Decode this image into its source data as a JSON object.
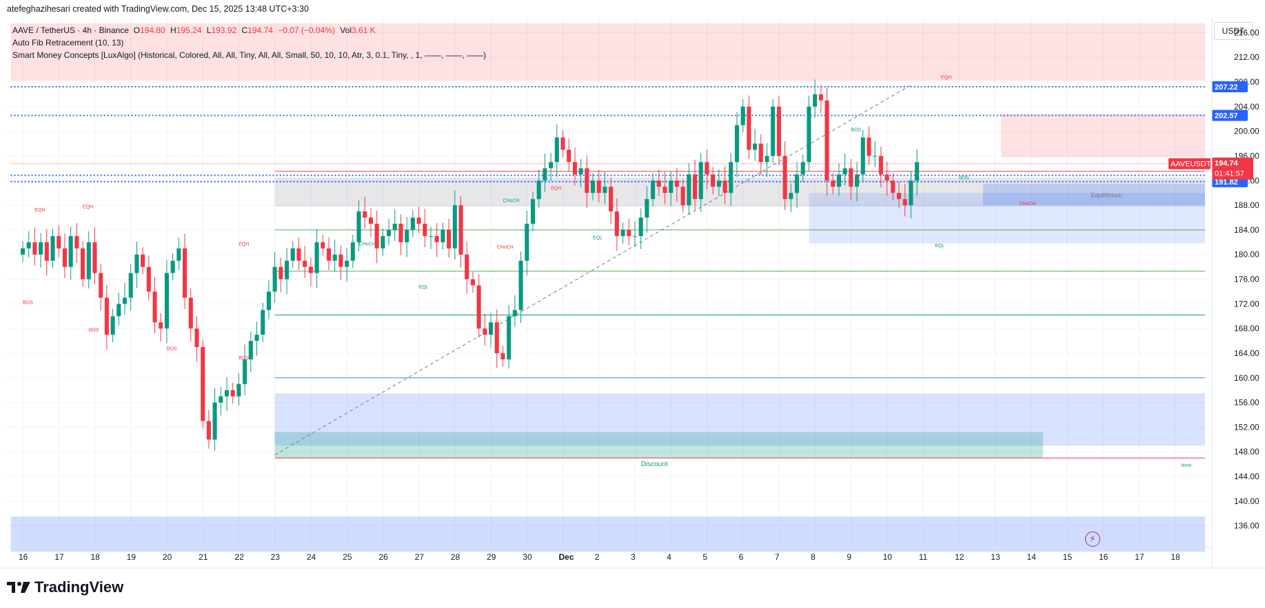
{
  "header": {
    "credit": "atefeghazihesari created with TradingView.com, Dec 15, 2025 13:48 UTC+3:30"
  },
  "legend": {
    "symbol": "AAVE / TetherUS · 4h · Binance",
    "open_label": "O",
    "open": "194.80",
    "high_label": "H",
    "high": "195.24",
    "low_label": "L",
    "low": "193.92",
    "close_label": "C",
    "close": "194.74",
    "change": "−0.07 (−0.04%)",
    "vol_label": "Vol",
    "vol": "3.61 K",
    "indicator1": "Auto Fib Retracement (10, 13)",
    "indicator2": "Smart Money Concepts [LuxAlgo] (Historical, Colored, All, All, Tiny, All, All, Small, 50, 10, 10, Atr, 3, 0.1, Tiny, , 1, ——, ——, ——)"
  },
  "currency": "USDT",
  "footer": {
    "brand": "TradingView"
  },
  "colors": {
    "up": "#089981",
    "down": "#f23645",
    "blue": "#2962ff",
    "grid": "#f0f3fa"
  },
  "chart_data": {
    "type": "candlestick",
    "symbol": "AAVEUSDT",
    "timeframe": "4h",
    "y_ticks": [
      136,
      140,
      144,
      148,
      152,
      156,
      160,
      164,
      168,
      172,
      176,
      180,
      184,
      188,
      192,
      196,
      200,
      204,
      208,
      212,
      216
    ],
    "ylim": [
      132.5,
      218.5
    ],
    "x_ticks": [
      {
        "label": "16",
        "i": 0
      },
      {
        "label": "17",
        "i": 6
      },
      {
        "label": "18",
        "i": 12
      },
      {
        "label": "19",
        "i": 18
      },
      {
        "label": "20",
        "i": 24
      },
      {
        "label": "21",
        "i": 30
      },
      {
        "label": "22",
        "i": 36
      },
      {
        "label": "23",
        "i": 42
      },
      {
        "label": "24",
        "i": 48
      },
      {
        "label": "25",
        "i": 54
      },
      {
        "label": "26",
        "i": 60
      },
      {
        "label": "27",
        "i": 66
      },
      {
        "label": "28",
        "i": 72
      },
      {
        "label": "29",
        "i": 78
      },
      {
        "label": "30",
        "i": 84
      },
      {
        "label": "Dec",
        "i": 90
      },
      {
        "label": "2",
        "i": 96
      },
      {
        "label": "3",
        "i": 102
      },
      {
        "label": "4",
        "i": 108
      },
      {
        "label": "5",
        "i": 114
      },
      {
        "label": "6",
        "i": 120
      },
      {
        "label": "7",
        "i": 126
      },
      {
        "label": "8",
        "i": 132
      },
      {
        "label": "9",
        "i": 138
      },
      {
        "label": "10",
        "i": 144
      },
      {
        "label": "11",
        "i": 150
      },
      {
        "label": "12",
        "i": 156
      },
      {
        "label": "13",
        "i": 162
      },
      {
        "label": "14",
        "i": 168
      },
      {
        "label": "15",
        "i": 174
      },
      {
        "label": "16",
        "i": 180
      },
      {
        "label": "17",
        "i": 186
      },
      {
        "label": "18",
        "i": 192
      }
    ],
    "close_path": [
      181,
      182,
      180,
      182,
      179,
      183,
      181,
      178,
      183,
      181,
      176,
      182,
      177,
      173,
      167,
      170,
      172,
      173,
      177,
      180,
      178,
      174,
      169,
      168,
      177,
      179,
      181,
      173,
      168,
      165,
      153,
      150,
      156,
      157,
      158,
      157,
      159,
      163,
      166,
      167,
      171,
      174,
      178,
      176,
      179,
      181,
      179,
      178,
      177,
      182,
      181,
      179,
      180,
      178,
      179,
      182,
      187,
      186,
      185,
      181,
      183,
      184,
      185,
      182,
      184,
      186,
      185,
      183,
      183,
      182,
      184,
      181,
      188,
      180,
      176,
      175,
      168,
      167,
      169,
      164,
      163,
      170,
      171,
      179,
      185,
      189,
      192,
      194,
      195,
      199,
      197,
      195,
      193,
      194,
      190,
      192,
      190,
      191,
      187,
      183,
      184,
      183,
      183,
      186,
      189,
      192,
      191,
      190,
      192,
      191,
      188,
      193,
      189,
      195,
      193,
      191,
      192,
      190,
      195,
      201,
      204,
      197,
      198,
      195,
      196,
      204,
      196,
      189,
      190,
      193,
      195,
      204,
      206,
      205,
      192,
      191,
      193,
      194,
      191,
      193,
      199,
      196,
      196,
      193,
      192,
      190,
      189,
      188,
      192,
      195
    ],
    "current_price": "194.74",
    "countdown": "01:41:57",
    "symbol_label": "AAVEUSDT",
    "price_labels": [
      {
        "value": "207.22",
        "price": 207.22
      },
      {
        "value": "202.57",
        "price": 202.57
      },
      {
        "value": "192.85",
        "price": 192.85
      },
      {
        "value": "191.82",
        "price": 191.82
      }
    ],
    "annotations": {
      "eqh": "EQH",
      "eql": "EQL",
      "bos": "BOS",
      "choch": "CHoCH",
      "equilibrium": "Equilibrium",
      "discount": "Discount",
      "weak": "Weak"
    }
  }
}
